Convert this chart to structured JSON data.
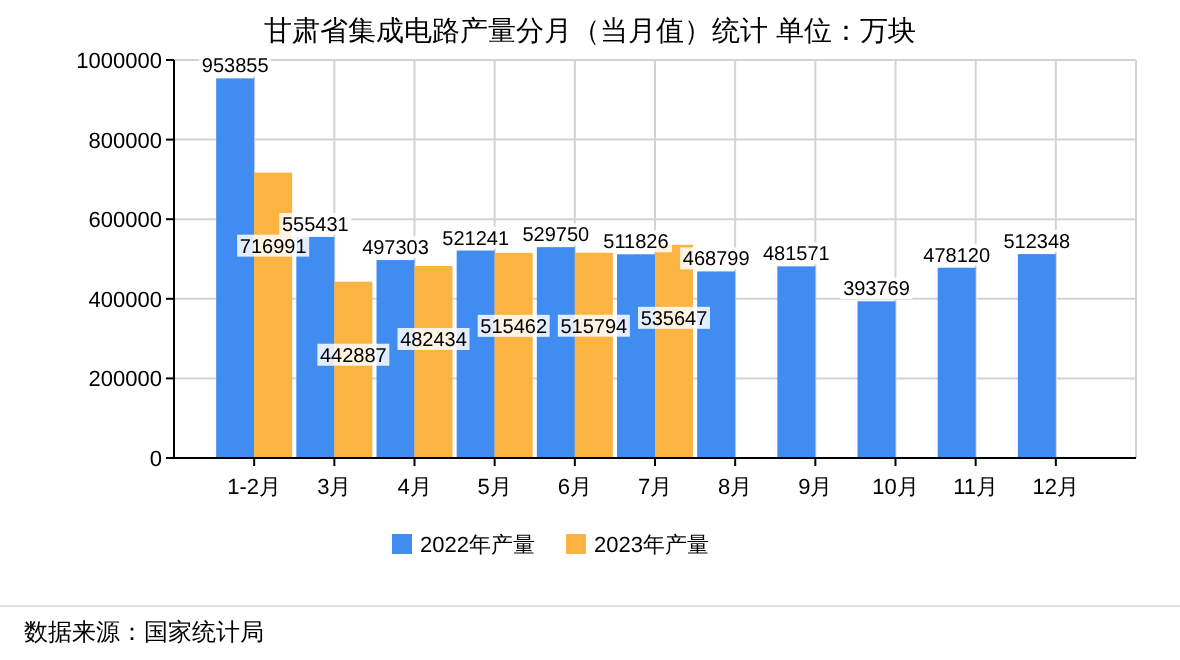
{
  "chart_data": {
    "type": "bar",
    "title": "甘肃省集成电路产量分月（当月值）统计 单位：万块",
    "categories": [
      "1-2月",
      "3月",
      "4月",
      "5月",
      "6月",
      "7月",
      "8月",
      "9月",
      "10月",
      "11月",
      "12月"
    ],
    "series": [
      {
        "name": "2022年产量",
        "color": "#418cf0",
        "values": [
          953855,
          555431,
          497303,
          521241,
          529750,
          511826,
          468799,
          481571,
          393769,
          478120,
          512348
        ]
      },
      {
        "name": "2023年产量",
        "color": "#fbb341",
        "values": [
          716991,
          442887,
          482434,
          515462,
          515794,
          535647,
          null,
          null,
          null,
          null,
          null
        ]
      }
    ],
    "ylim": [
      0,
      1000000
    ],
    "yticks": [
      0,
      200000,
      400000,
      600000,
      800000,
      1000000
    ],
    "grid": true,
    "legend": "bottom",
    "data_labels": true,
    "annotations": [
      "数据来源：国家统计局"
    ]
  }
}
